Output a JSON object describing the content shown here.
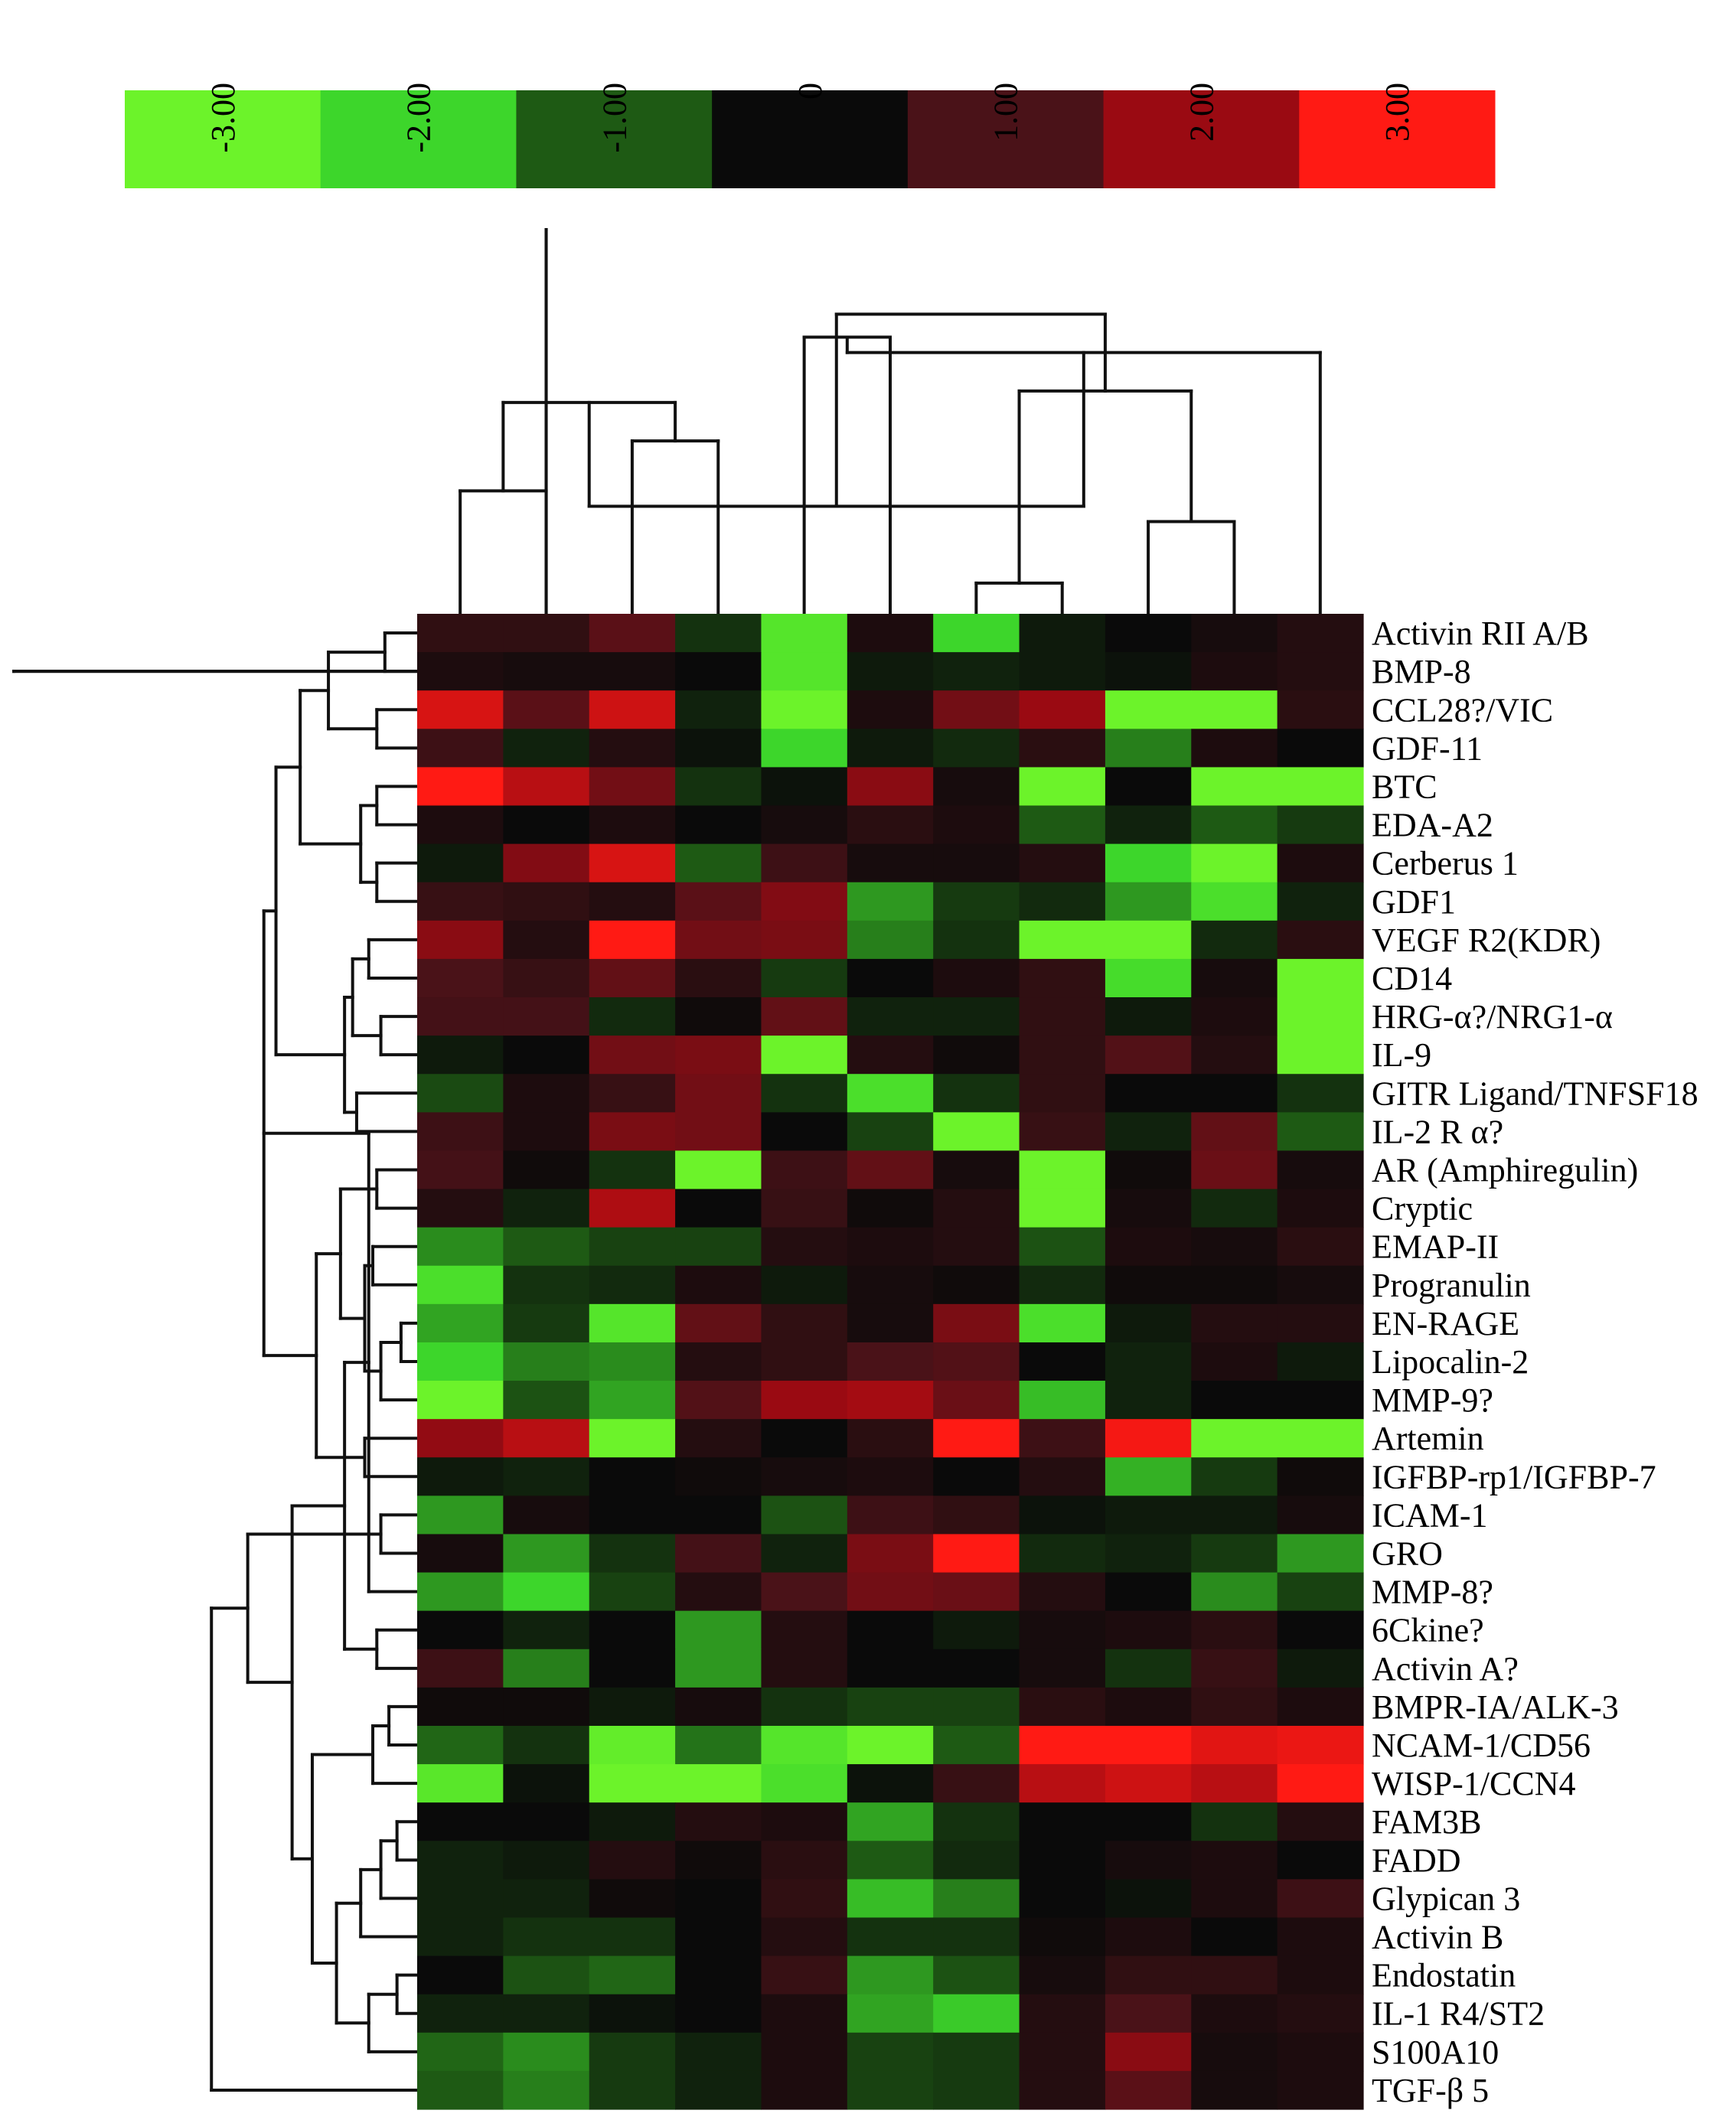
{
  "chart_data": {
    "type": "heatmap",
    "title": "",
    "xlabel": "",
    "ylabel": "",
    "colorbar": {
      "tick_labels": [
        "-3.00",
        "-2.00",
        "-1.00",
        "0",
        "1.00",
        "2.00",
        "3.00"
      ],
      "colors": [
        "#6cf32a",
        "#3dd62b",
        "#1e5a14",
        "#0a0a0a",
        "#4a1218",
        "#9a0a12",
        "#ff1a14"
      ],
      "range": [
        -3,
        3
      ]
    },
    "rows": [
      "Activin RII A/B",
      "BMP-8",
      "CCL28?/VIC",
      "GDF-11",
      "BTC",
      "EDA-A2",
      "Cerberus 1",
      "GDF1",
      "VEGF R2(KDR)",
      "CD14",
      "HRG-α?/NRG1-α",
      "IL-9",
      "GITR Ligand/TNFSF18",
      "IL-2 R α?",
      "AR (Amphiregulin)",
      "Cryptic",
      "EMAP-II",
      "Progranulin",
      "EN-RAGE",
      "Lipocalin-2",
      "MMP-9?",
      "Artemin",
      "IGFBP-rp1/IGFBP-7",
      "ICAM-1",
      "GRO",
      "MMP-8?",
      "6Ckine?",
      "Activin A?",
      "BMPR-IA/ALK-3",
      "NCAM-1/CD56",
      "WISP-1/CCN4",
      "FAM3B",
      "FADD",
      "Glypican 3",
      "Activin B",
      "Endostatin",
      "IL-1 R4/ST2",
      "S100A10",
      "TGF-β 5"
    ],
    "n_columns": 11,
    "values": [
      [
        0.6,
        0.6,
        1.2,
        -0.5,
        -2.5,
        0.3,
        -2.0,
        -0.2,
        0,
        0.2,
        0.4
      ],
      [
        0.3,
        0.2,
        0.2,
        0,
        -2.5,
        -0.2,
        -0.3,
        -0.2,
        -0.1,
        0.3,
        0.4
      ],
      [
        2.6,
        1.2,
        2.5,
        -0.3,
        -3.0,
        0.3,
        1.5,
        2.0,
        -3.0,
        -3.0,
        0.5
      ],
      [
        0.8,
        -0.3,
        0.4,
        -0.1,
        -2.0,
        -0.2,
        -0.4,
        0.5,
        -1.3,
        0.3,
        0
      ],
      [
        3.0,
        2.3,
        1.5,
        -0.5,
        -0.1,
        1.8,
        0.2,
        -3.0,
        0,
        -3.0,
        -3.0
      ],
      [
        0.3,
        0,
        0.3,
        0,
        0.2,
        0.5,
        0.3,
        -1.0,
        -0.3,
        -1.0,
        -0.6
      ],
      [
        -0.2,
        1.7,
        2.6,
        -1.0,
        0.8,
        0.2,
        0.2,
        0.4,
        -2.0,
        -3.0,
        0.3
      ],
      [
        0.7,
        0.6,
        0.4,
        1.2,
        1.7,
        -1.5,
        -0.6,
        -0.4,
        -1.5,
        -2.3,
        -0.3
      ],
      [
        1.8,
        0.4,
        3.0,
        1.5,
        1.6,
        -1.3,
        -0.5,
        -3.0,
        -3.0,
        -0.4,
        0.5
      ],
      [
        1.0,
        0.7,
        1.3,
        0.5,
        -0.6,
        0,
        0.3,
        0.6,
        -2.2,
        0.2,
        -3.0
      ],
      [
        0.9,
        0.9,
        -0.4,
        0.1,
        1.3,
        -0.3,
        -0.3,
        0.6,
        -0.2,
        0.3,
        -3.0
      ],
      [
        -0.2,
        0,
        1.5,
        1.6,
        -3.0,
        0.4,
        0.1,
        0.6,
        1.1,
        0.4,
        -3.0
      ],
      [
        -0.8,
        0.3,
        0.7,
        1.5,
        -0.5,
        -2.3,
        -0.5,
        0.6,
        0,
        0,
        -0.5
      ],
      [
        0.8,
        0.3,
        1.6,
        1.5,
        0,
        -0.7,
        -3.0,
        0.7,
        -0.3,
        1.3,
        -1.0
      ],
      [
        0.9,
        0.1,
        -0.5,
        -3.0,
        0.8,
        1.3,
        0.2,
        -3.0,
        0.1,
        1.4,
        0.2
      ],
      [
        0.4,
        -0.3,
        2.2,
        0,
        0.7,
        0.1,
        0.4,
        -3.0,
        0.2,
        -0.4,
        0.3
      ],
      [
        -1.4,
        -1.0,
        -0.7,
        -0.7,
        0.4,
        0.3,
        0.4,
        -0.9,
        0.3,
        0.2,
        0.5
      ],
      [
        -2.3,
        -0.5,
        -0.4,
        0.3,
        -0.2,
        0.2,
        0.1,
        -0.4,
        0.1,
        0.1,
        0.2
      ],
      [
        -1.6,
        -0.6,
        -2.5,
        1.3,
        0.6,
        0.2,
        1.6,
        -2.3,
        -0.2,
        0.4,
        0.4
      ],
      [
        -2.0,
        -1.3,
        -1.4,
        0.4,
        0.6,
        1.0,
        1.1,
        0,
        -0.3,
        0.3,
        -0.2
      ],
      [
        -3.0,
        -0.9,
        -1.6,
        1.1,
        2.0,
        2.1,
        1.4,
        -1.8,
        -0.3,
        0,
        0
      ],
      [
        1.9,
        2.3,
        -3.0,
        0.4,
        0,
        0.5,
        3.0,
        0.8,
        2.9,
        -3.0,
        -3.0
      ],
      [
        -0.2,
        -0.3,
        0,
        0.1,
        0.2,
        0.3,
        0,
        0.4,
        -1.7,
        -0.6,
        0.1
      ],
      [
        -1.5,
        0.2,
        0,
        0,
        -0.9,
        0.8,
        0.6,
        -0.1,
        -0.2,
        -0.2,
        0.2
      ],
      [
        0.2,
        -1.5,
        -0.5,
        0.9,
        -0.3,
        1.6,
        3.0,
        -0.4,
        -0.3,
        -0.6,
        -1.5
      ],
      [
        -1.5,
        -2.0,
        -0.7,
        0.4,
        1.0,
        1.5,
        1.4,
        0.4,
        0,
        -1.4,
        -0.7
      ],
      [
        0,
        -0.3,
        0,
        -1.5,
        0.4,
        0,
        -0.2,
        0.2,
        0.3,
        0.5,
        0
      ],
      [
        0.8,
        -1.3,
        0,
        -1.5,
        0.4,
        0,
        0,
        0.2,
        -0.5,
        0.7,
        -0.2
      ],
      [
        0.1,
        0.1,
        -0.2,
        0.2,
        -0.5,
        -0.7,
        -0.7,
        0.5,
        0.3,
        0.6,
        0.3
      ],
      [
        -1.1,
        -0.5,
        -2.8,
        -1.2,
        -2.5,
        -3.0,
        -1.0,
        3.0,
        3.0,
        2.7,
        2.8
      ],
      [
        -2.6,
        -0.1,
        -3.0,
        -3.0,
        -2.3,
        -0.1,
        0.7,
        2.3,
        2.5,
        2.3,
        3.0
      ],
      [
        0,
        0,
        -0.2,
        0.4,
        0.3,
        -1.6,
        -0.5,
        0,
        0,
        -0.5,
        0.4
      ],
      [
        -0.3,
        -0.2,
        0.4,
        0.1,
        0.5,
        -1.0,
        -0.4,
        0,
        0.2,
        0.3,
        0
      ],
      [
        -0.3,
        -0.3,
        0.1,
        0,
        0.6,
        -1.8,
        -1.3,
        0,
        -0.1,
        0.3,
        0.8
      ],
      [
        -0.3,
        -0.5,
        -0.5,
        0,
        0.4,
        -0.5,
        -0.5,
        0.1,
        0.3,
        0,
        0.3
      ],
      [
        0,
        -0.9,
        -1.1,
        0,
        0.7,
        -1.5,
        -0.9,
        0.2,
        0.6,
        0.6,
        0.3
      ],
      [
        -0.3,
        -0.3,
        -0.1,
        0,
        0.3,
        -1.6,
        -1.9,
        0.4,
        1.0,
        0.3,
        0.4
      ],
      [
        -1.1,
        -1.4,
        -0.6,
        -0.3,
        0.3,
        -0.7,
        -0.6,
        0.4,
        1.8,
        0.2,
        0.3
      ],
      [
        -1.0,
        -1.3,
        -0.6,
        -0.3,
        0.3,
        -0.7,
        -0.6,
        0.4,
        1.2,
        0.2,
        0.3
      ]
    ],
    "column_dendrogram": [
      [
        0,
        1,
        0.32
      ],
      [
        2,
        3,
        0.45
      ],
      [
        11,
        12,
        0.55
      ],
      [
        4,
        5,
        0.72
      ],
      [
        6,
        7,
        0.08
      ],
      [
        8,
        9,
        0.24
      ],
      [
        10,
        14,
        0.68
      ],
      [
        15,
        16,
        0.58
      ],
      [
        13,
        17,
        0.28
      ],
      [
        18,
        19,
        0.78
      ],
      [
        1.0,
        1.0,
        1.0
      ]
    ],
    "row_dendrogram": [
      [
        0,
        1,
        0.08
      ],
      [
        2,
        3,
        0.1
      ],
      [
        39,
        40,
        0.22
      ],
      [
        4,
        5,
        0.1
      ],
      [
        6,
        7,
        0.1
      ],
      [
        42,
        43,
        0.14
      ],
      [
        41,
        44,
        0.29
      ],
      [
        8,
        9,
        0.12
      ],
      [
        10,
        11,
        0.09
      ],
      [
        46,
        47,
        0.16
      ],
      [
        12,
        13,
        0.15
      ],
      [
        48,
        49,
        0.18
      ],
      [
        45,
        50,
        0.35
      ],
      [
        14,
        15,
        0.1
      ],
      [
        16,
        17,
        0.11
      ],
      [
        18,
        19,
        0.04
      ],
      [
        20,
        54,
        0.09
      ],
      [
        53,
        55,
        0.13
      ],
      [
        52,
        56,
        0.19
      ],
      [
        21,
        22,
        0.13
      ],
      [
        57,
        58,
        0.25
      ],
      [
        51,
        59,
        0.38
      ],
      [
        23,
        24,
        0.09
      ],
      [
        25,
        60,
        0.12
      ],
      [
        26,
        27,
        0.1
      ],
      [
        62,
        63,
        0.18
      ],
      [
        28,
        29,
        0.07
      ],
      [
        65,
        30,
        0.11
      ],
      [
        31,
        32,
        0.05
      ],
      [
        67,
        33,
        0.09
      ],
      [
        34,
        68,
        0.14
      ],
      [
        35,
        36,
        0.05
      ],
      [
        37,
        70,
        0.12
      ],
      [
        69,
        71,
        0.2
      ],
      [
        66,
        72,
        0.26
      ],
      [
        64,
        73,
        0.31
      ],
      [
        61,
        74,
        0.42
      ],
      [
        38,
        75,
        0.51
      ],
      [
        1.0,
        1.0,
        1.0
      ]
    ]
  }
}
